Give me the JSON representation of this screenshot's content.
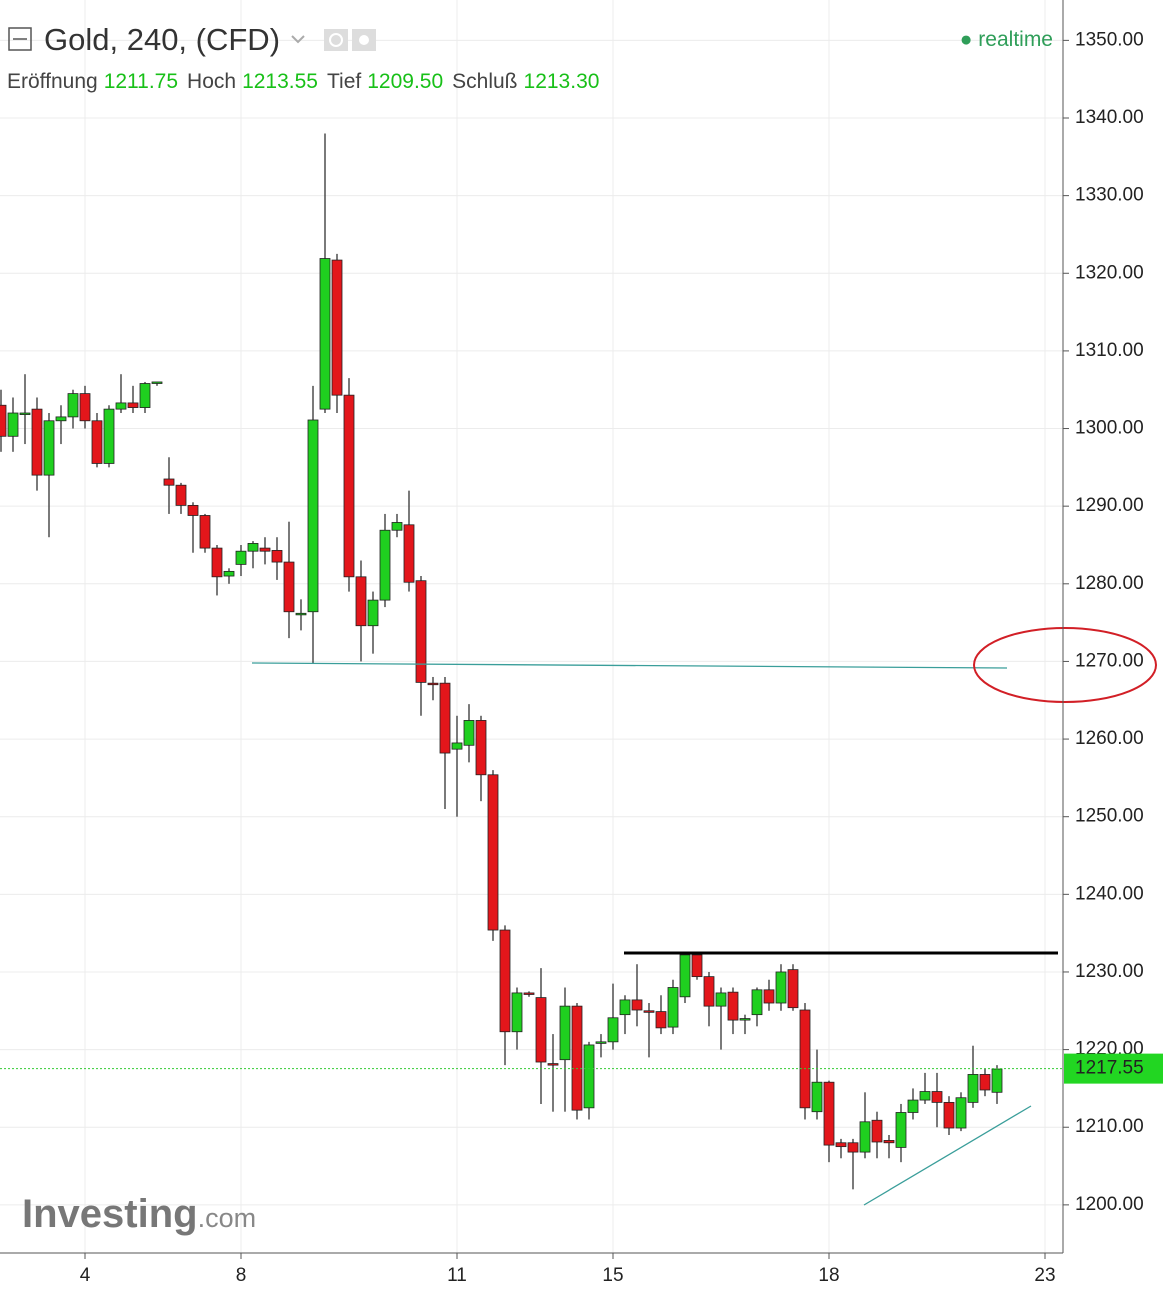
{
  "header": {
    "title": "Gold, 240, (CFD)",
    "status": "realtime",
    "fields": [
      {
        "name": "Eröffnung",
        "value": "1211.75"
      },
      {
        "name": "Hoch",
        "value": "1213.55"
      },
      {
        "name": "Tief",
        "value": "1209.50"
      },
      {
        "name": "Schluß",
        "value": "1213.30"
      }
    ]
  },
  "watermark": [
    "Investing",
    ".com"
  ],
  "chart_data": {
    "type": "candlestick",
    "categories": [
      null,
      null,
      null,
      null,
      null,
      null,
      null,
      "4",
      null,
      null,
      null,
      null,
      null,
      null,
      null,
      null,
      null,
      null,
      null,
      null,
      "8",
      null,
      null,
      null,
      null,
      null,
      null,
      null,
      null,
      null,
      null,
      null,
      null,
      null,
      null,
      null,
      null,
      null,
      "11",
      null,
      null,
      null,
      null,
      null,
      null,
      null,
      null,
      null,
      null,
      null,
      null,
      "15",
      null,
      null,
      null,
      null,
      null,
      null,
      null,
      null,
      null,
      null,
      null,
      null,
      null,
      null,
      null,
      null,
      null,
      "18",
      null,
      null,
      null,
      null,
      null,
      null,
      null,
      null,
      null,
      null,
      null,
      null,
      null,
      null,
      null,
      null,
      null,
      "23"
    ],
    "open": [
      1303,
      1299,
      1301.8,
      1302.5,
      1294,
      1301,
      1301.5,
      1304.5,
      1301,
      1295.5,
      1302.5,
      1303.3,
      1302.7,
      1305.8,
      1293.5,
      1292.7,
      1290.1,
      1288.8,
      1284.6,
      1281,
      1282.5,
      1284.2,
      1284.6,
      1284.3,
      1282.8,
      1276,
      1276.4,
      1302.5,
      1321.7,
      1304.3,
      1280.9,
      1274.6,
      1277.9,
      1286.9,
      1287.6,
      1280.4,
      1267.2,
      1267.2,
      1258.7,
      1259.2,
      1262.4,
      1255.4,
      1235.4,
      1222.3,
      1227.3,
      1226.7,
      1218.2,
      1218.7,
      1225.6,
      1212.5,
      1220.8,
      1221,
      1224.5,
      1226.4,
      1225,
      1224.9,
      1222.9,
      1226.8,
      1232.2,
      1229.4,
      1225.6,
      1227.4,
      1223.8,
      1224.5,
      1227.7,
      1226,
      1230.3,
      1225.1,
      1212,
      1215.8,
      1208,
      1208,
      1206.8,
      1210.9,
      1208.3,
      1207.4,
      1211.9,
      1213.5,
      1214.6,
      1213.2,
      1209.9,
      1213.2,
      1216.8,
      1214.5,
      null,
      null,
      null,
      null
    ],
    "high": [
      1305,
      1304,
      1307,
      1304,
      1302,
      1303,
      1305,
      1305.5,
      1302,
      1303,
      1307,
      1305.5,
      1306,
      1306,
      1296.3,
      1293,
      1290.5,
      1289,
      1285,
      1282,
      1285,
      1285.5,
      1286,
      1286,
      1288,
      1278,
      1305.5,
      1338,
      1322.5,
      1306.5,
      1283,
      1279,
      1289,
      1289,
      1292,
      1281,
      1268,
      1268,
      1263,
      1264.5,
      1263,
      1256,
      1236,
      1228,
      1227.5,
      1230.5,
      1222,
      1228,
      1226,
      1221,
      1222,
      1228.5,
      1227,
      1231,
      1226,
      1227,
      1229,
      1232.5,
      1232.5,
      1230,
      1228,
      1228,
      1224.5,
      1228,
      1229,
      1231,
      1231,
      1226,
      1220,
      1216,
      1208.5,
      1208.5,
      1214.5,
      1212,
      1209,
      1213,
      1215,
      1217,
      1217,
      1214,
      1214.5,
      1220.5,
      1217.5,
      1218,
      null,
      null,
      null,
      null
    ],
    "low": [
      1297,
      1297,
      1298,
      1292,
      1286,
      1298,
      1300,
      1300,
      1295,
      1295,
      1302,
      1302,
      1302,
      1305.5,
      1289,
      1289,
      1284,
      1284,
      1278.5,
      1280,
      1281,
      1282,
      1282.5,
      1280.5,
      1273,
      1274,
      1269.7,
      1302,
      1302,
      1279,
      1270,
      1271,
      1277,
      1286,
      1279,
      1263,
      1265,
      1251,
      1250,
      1257,
      1252,
      1234,
      1218,
      1220,
      1226.8,
      1213,
      1212,
      1212,
      1211,
      1211,
      1219,
      1220,
      1222,
      1223,
      1219,
      1222,
      1222,
      1226,
      1229,
      1223,
      1220,
      1222,
      1222,
      1223,
      1225,
      1225,
      1225,
      1211,
      1211,
      1205.5,
      1206,
      1202,
      1206,
      1206,
      1206,
      1205.5,
      1211,
      1213,
      1210,
      1209,
      1209.5,
      1212.5,
      1214,
      1213,
      null,
      null,
      null,
      null
    ],
    "close": [
      1299,
      1302,
      1302,
      1294,
      1301,
      1301.5,
      1304.5,
      1301,
      1295.5,
      1302.5,
      1303.3,
      1302.7,
      1305.8,
      1306,
      1292.7,
      1290.1,
      1288.8,
      1284.6,
      1280.9,
      1281.6,
      1284.2,
      1285.2,
      1284.2,
      1282.8,
      1276.4,
      1276.2,
      1301.1,
      1321.9,
      1304.3,
      1280.9,
      1274.6,
      1277.9,
      1286.9,
      1287.9,
      1280.2,
      1267.3,
      1267,
      1258.2,
      1259.5,
      1262.4,
      1255.4,
      1235.4,
      1222.3,
      1227.3,
      1227.1,
      1218.4,
      1218,
      1225.6,
      1212.2,
      1220.6,
      1221,
      1224.1,
      1226.4,
      1225.1,
      1224.8,
      1222.8,
      1228,
      1232.2,
      1229.4,
      1225.6,
      1227.3,
      1223.8,
      1224,
      1227.7,
      1226,
      1230,
      1225.4,
      1212.5,
      1215.8,
      1207.7,
      1207.5,
      1206.8,
      1210.7,
      1208.1,
      1208,
      1211.9,
      1213.5,
      1214.6,
      1213.2,
      1209.9,
      1213.8,
      1216.8,
      1214.8,
      1217.5,
      null,
      null,
      null,
      null
    ],
    "up_color": "#1fcf1f",
    "down_color": "#e3161b",
    "ylim": [
      1193.8,
      1355.2
    ],
    "yticks": [
      {
        "value": 1200,
        "label": "1200.00"
      },
      {
        "value": 1210,
        "label": "1210.00"
      },
      {
        "value": 1220,
        "label": "1220.00"
      },
      {
        "value": 1230,
        "label": "1230.00"
      },
      {
        "value": 1240,
        "label": "1240.00"
      },
      {
        "value": 1250,
        "label": "1250.00"
      },
      {
        "value": 1260,
        "label": "1260.00"
      },
      {
        "value": 1270,
        "label": "1270.00"
      },
      {
        "value": 1280,
        "label": "1280.00"
      },
      {
        "value": 1290,
        "label": "1290.00"
      },
      {
        "value": 1300,
        "label": "1300.00"
      },
      {
        "value": 1310,
        "label": "1310.00"
      },
      {
        "value": 1320,
        "label": "1320.00"
      },
      {
        "value": 1330,
        "label": "1330.00"
      },
      {
        "value": 1340,
        "label": "1340.00"
      },
      {
        "value": 1350,
        "label": "1350.00"
      }
    ],
    "last_price": {
      "value": 1217.55,
      "label": "1217.55"
    },
    "grid": true
  }
}
